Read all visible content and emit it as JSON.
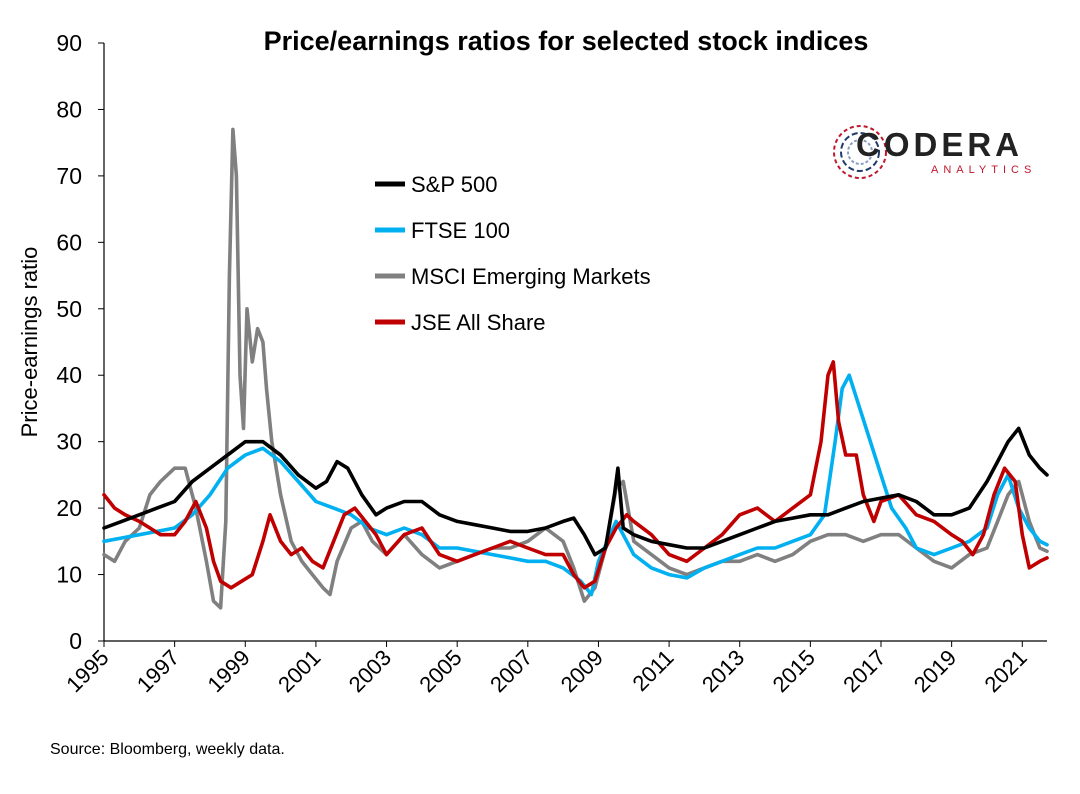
{
  "chart_data": {
    "type": "line",
    "title": "Price/earnings ratios for selected stock indices",
    "ylabel": "Price-earnings ratio",
    "xlabel": "",
    "ylim": [
      0,
      90
    ],
    "xlim": [
      1995,
      2021.7
    ],
    "yticks": [
      0,
      10,
      20,
      30,
      40,
      50,
      60,
      70,
      80,
      90
    ],
    "xticks": [
      1995,
      1997,
      1999,
      2001,
      2003,
      2005,
      2007,
      2009,
      2011,
      2013,
      2015,
      2017,
      2019,
      2021
    ],
    "grid": false,
    "legend": "upper-center",
    "source": "Source: Bloomberg, weekly data.",
    "series": [
      {
        "name": "S&P 500",
        "color": "#000000",
        "points": [
          [
            1995.0,
            17
          ],
          [
            1995.5,
            18
          ],
          [
            1996.0,
            19
          ],
          [
            1996.5,
            20
          ],
          [
            1997.0,
            21
          ],
          [
            1997.5,
            24
          ],
          [
            1998.0,
            26
          ],
          [
            1998.5,
            28
          ],
          [
            1999.0,
            30
          ],
          [
            1999.5,
            30
          ],
          [
            2000.0,
            28
          ],
          [
            2000.5,
            25
          ],
          [
            2001.0,
            23
          ],
          [
            2001.3,
            24
          ],
          [
            2001.6,
            27
          ],
          [
            2001.9,
            26
          ],
          [
            2002.3,
            22
          ],
          [
            2002.7,
            19
          ],
          [
            2003.0,
            20
          ],
          [
            2003.5,
            21
          ],
          [
            2004.0,
            21
          ],
          [
            2004.5,
            19
          ],
          [
            2005.0,
            18
          ],
          [
            2005.5,
            17.5
          ],
          [
            2006.0,
            17
          ],
          [
            2006.5,
            16.5
          ],
          [
            2007.0,
            16.5
          ],
          [
            2007.5,
            17
          ],
          [
            2008.0,
            18
          ],
          [
            2008.3,
            18.5
          ],
          [
            2008.6,
            16
          ],
          [
            2008.9,
            13
          ],
          [
            2009.2,
            14
          ],
          [
            2009.45,
            22
          ],
          [
            2009.55,
            26
          ],
          [
            2009.7,
            17
          ],
          [
            2010.0,
            16
          ],
          [
            2010.5,
            15
          ],
          [
            2011.0,
            14.5
          ],
          [
            2011.5,
            14
          ],
          [
            2012.0,
            14
          ],
          [
            2012.5,
            15
          ],
          [
            2013.0,
            16
          ],
          [
            2013.5,
            17
          ],
          [
            2014.0,
            18
          ],
          [
            2014.5,
            18.5
          ],
          [
            2015.0,
            19
          ],
          [
            2015.5,
            19
          ],
          [
            2016.0,
            20
          ],
          [
            2016.5,
            21
          ],
          [
            2017.0,
            21.5
          ],
          [
            2017.5,
            22
          ],
          [
            2018.0,
            21
          ],
          [
            2018.5,
            19
          ],
          [
            2019.0,
            19
          ],
          [
            2019.5,
            20
          ],
          [
            2020.0,
            24
          ],
          [
            2020.3,
            27
          ],
          [
            2020.6,
            30
          ],
          [
            2020.9,
            32
          ],
          [
            2021.2,
            28
          ],
          [
            2021.5,
            26
          ],
          [
            2021.7,
            25
          ]
        ]
      },
      {
        "name": "FTSE 100",
        "color": "#00b0f0",
        "points": [
          [
            1995.0,
            15
          ],
          [
            1995.5,
            15.5
          ],
          [
            1996.0,
            16
          ],
          [
            1996.5,
            16.5
          ],
          [
            1997.0,
            17
          ],
          [
            1997.5,
            19
          ],
          [
            1998.0,
            22
          ],
          [
            1998.5,
            26
          ],
          [
            1999.0,
            28
          ],
          [
            1999.5,
            29
          ],
          [
            2000.0,
            27
          ],
          [
            2000.5,
            24
          ],
          [
            2001.0,
            21
          ],
          [
            2001.5,
            20
          ],
          [
            2002.0,
            19
          ],
          [
            2002.5,
            17
          ],
          [
            2003.0,
            16
          ],
          [
            2003.5,
            17
          ],
          [
            2004.0,
            16
          ],
          [
            2004.5,
            14
          ],
          [
            2005.0,
            14
          ],
          [
            2005.5,
            13.5
          ],
          [
            2006.0,
            13
          ],
          [
            2006.5,
            12.5
          ],
          [
            2007.0,
            12
          ],
          [
            2007.5,
            12
          ],
          [
            2008.0,
            11
          ],
          [
            2008.5,
            9
          ],
          [
            2008.8,
            7
          ],
          [
            2009.0,
            12
          ],
          [
            2009.5,
            18
          ],
          [
            2009.7,
            16
          ],
          [
            2010.0,
            13
          ],
          [
            2010.5,
            11
          ],
          [
            2011.0,
            10
          ],
          [
            2011.5,
            9.5
          ],
          [
            2012.0,
            11
          ],
          [
            2012.5,
            12
          ],
          [
            2013.0,
            13
          ],
          [
            2013.5,
            14
          ],
          [
            2014.0,
            14
          ],
          [
            2014.5,
            15
          ],
          [
            2015.0,
            16
          ],
          [
            2015.4,
            19
          ],
          [
            2015.7,
            30
          ],
          [
            2015.9,
            38
          ],
          [
            2016.1,
            40
          ],
          [
            2016.4,
            35
          ],
          [
            2016.7,
            30
          ],
          [
            2017.0,
            25
          ],
          [
            2017.3,
            20
          ],
          [
            2017.7,
            17
          ],
          [
            2018.0,
            14
          ],
          [
            2018.5,
            13
          ],
          [
            2019.0,
            14
          ],
          [
            2019.5,
            15
          ],
          [
            2020.0,
            17
          ],
          [
            2020.3,
            22
          ],
          [
            2020.6,
            25
          ],
          [
            2020.9,
            20
          ],
          [
            2021.2,
            17
          ],
          [
            2021.5,
            15
          ],
          [
            2021.7,
            14.5
          ]
        ]
      },
      {
        "name": "MSCI Emerging Markets",
        "color": "#808080",
        "points": [
          [
            1995.0,
            13
          ],
          [
            1995.3,
            12
          ],
          [
            1995.6,
            15
          ],
          [
            1996.0,
            17
          ],
          [
            1996.3,
            22
          ],
          [
            1996.6,
            24
          ],
          [
            1997.0,
            26
          ],
          [
            1997.3,
            26
          ],
          [
            1997.6,
            20
          ],
          [
            1997.9,
            12
          ],
          [
            1998.1,
            6
          ],
          [
            1998.3,
            5
          ],
          [
            1998.45,
            18
          ],
          [
            1998.55,
            55
          ],
          [
            1998.65,
            77
          ],
          [
            1998.75,
            70
          ],
          [
            1998.85,
            40
          ],
          [
            1998.95,
            32
          ],
          [
            1999.05,
            50
          ],
          [
            1999.2,
            42
          ],
          [
            1999.35,
            47
          ],
          [
            1999.5,
            45
          ],
          [
            1999.6,
            38
          ],
          [
            1999.75,
            30
          ],
          [
            2000.0,
            22
          ],
          [
            2000.3,
            15
          ],
          [
            2000.6,
            12
          ],
          [
            2000.9,
            10
          ],
          [
            2001.2,
            8
          ],
          [
            2001.4,
            7
          ],
          [
            2001.6,
            12
          ],
          [
            2002.0,
            17
          ],
          [
            2002.3,
            18
          ],
          [
            2002.6,
            15
          ],
          [
            2003.0,
            13
          ],
          [
            2003.5,
            16
          ],
          [
            2004.0,
            13
          ],
          [
            2004.5,
            11
          ],
          [
            2005.0,
            12
          ],
          [
            2005.5,
            13
          ],
          [
            2006.0,
            14
          ],
          [
            2006.5,
            14
          ],
          [
            2007.0,
            15
          ],
          [
            2007.5,
            17
          ],
          [
            2008.0,
            15
          ],
          [
            2008.3,
            11
          ],
          [
            2008.6,
            6
          ],
          [
            2008.9,
            8
          ],
          [
            2009.2,
            14
          ],
          [
            2009.5,
            23
          ],
          [
            2009.7,
            24
          ],
          [
            2010.0,
            15
          ],
          [
            2010.5,
            13
          ],
          [
            2011.0,
            11
          ],
          [
            2011.5,
            10
          ],
          [
            2012.0,
            11
          ],
          [
            2012.5,
            12
          ],
          [
            2013.0,
            12
          ],
          [
            2013.5,
            13
          ],
          [
            2014.0,
            12
          ],
          [
            2014.5,
            13
          ],
          [
            2015.0,
            15
          ],
          [
            2015.5,
            16
          ],
          [
            2016.0,
            16
          ],
          [
            2016.5,
            15
          ],
          [
            2017.0,
            16
          ],
          [
            2017.5,
            16
          ],
          [
            2018.0,
            14
          ],
          [
            2018.5,
            12
          ],
          [
            2019.0,
            11
          ],
          [
            2019.5,
            13
          ],
          [
            2020.0,
            14
          ],
          [
            2020.3,
            18
          ],
          [
            2020.6,
            22
          ],
          [
            2020.9,
            24
          ],
          [
            2021.2,
            18
          ],
          [
            2021.5,
            14
          ],
          [
            2021.7,
            13.5
          ]
        ]
      },
      {
        "name": "JSE All Share",
        "color": "#c00000",
        "points": [
          [
            1995.0,
            22
          ],
          [
            1995.3,
            20
          ],
          [
            1995.6,
            19
          ],
          [
            1996.0,
            18
          ],
          [
            1996.3,
            17
          ],
          [
            1996.6,
            16
          ],
          [
            1997.0,
            16
          ],
          [
            1997.3,
            18
          ],
          [
            1997.6,
            21
          ],
          [
            1997.9,
            17
          ],
          [
            1998.1,
            12
          ],
          [
            1998.3,
            9
          ],
          [
            1998.6,
            8
          ],
          [
            1998.9,
            9
          ],
          [
            1999.2,
            10
          ],
          [
            1999.5,
            15
          ],
          [
            1999.7,
            19
          ],
          [
            2000.0,
            15
          ],
          [
            2000.3,
            13
          ],
          [
            2000.6,
            14
          ],
          [
            2000.9,
            12
          ],
          [
            2001.2,
            11
          ],
          [
            2001.5,
            15
          ],
          [
            2001.8,
            19
          ],
          [
            2002.1,
            20
          ],
          [
            2002.4,
            18
          ],
          [
            2002.7,
            16
          ],
          [
            2003.0,
            13
          ],
          [
            2003.5,
            16
          ],
          [
            2004.0,
            17
          ],
          [
            2004.5,
            13
          ],
          [
            2005.0,
            12
          ],
          [
            2005.5,
            13
          ],
          [
            2006.0,
            14
          ],
          [
            2006.5,
            15
          ],
          [
            2007.0,
            14
          ],
          [
            2007.5,
            13
          ],
          [
            2008.0,
            13
          ],
          [
            2008.3,
            10
          ],
          [
            2008.6,
            8
          ],
          [
            2008.9,
            9
          ],
          [
            2009.2,
            14
          ],
          [
            2009.5,
            17
          ],
          [
            2009.8,
            19
          ],
          [
            2010.0,
            18
          ],
          [
            2010.5,
            16
          ],
          [
            2011.0,
            13
          ],
          [
            2011.5,
            12
          ],
          [
            2012.0,
            14
          ],
          [
            2012.5,
            16
          ],
          [
            2013.0,
            19
          ],
          [
            2013.5,
            20
          ],
          [
            2014.0,
            18
          ],
          [
            2014.5,
            20
          ],
          [
            2015.0,
            22
          ],
          [
            2015.3,
            30
          ],
          [
            2015.5,
            40
          ],
          [
            2015.65,
            42
          ],
          [
            2015.8,
            33
          ],
          [
            2016.0,
            28
          ],
          [
            2016.3,
            28
          ],
          [
            2016.5,
            22
          ],
          [
            2016.8,
            18
          ],
          [
            2017.0,
            21
          ],
          [
            2017.5,
            22
          ],
          [
            2018.0,
            19
          ],
          [
            2018.5,
            18
          ],
          [
            2019.0,
            16
          ],
          [
            2019.3,
            15
          ],
          [
            2019.6,
            13
          ],
          [
            2019.9,
            16
          ],
          [
            2020.2,
            22
          ],
          [
            2020.5,
            26
          ],
          [
            2020.8,
            24
          ],
          [
            2021.0,
            16
          ],
          [
            2021.2,
            11
          ],
          [
            2021.5,
            12
          ],
          [
            2021.7,
            12.5
          ]
        ]
      }
    ]
  },
  "logo": {
    "word": "CODERA",
    "sub": "ANALYTICS"
  }
}
